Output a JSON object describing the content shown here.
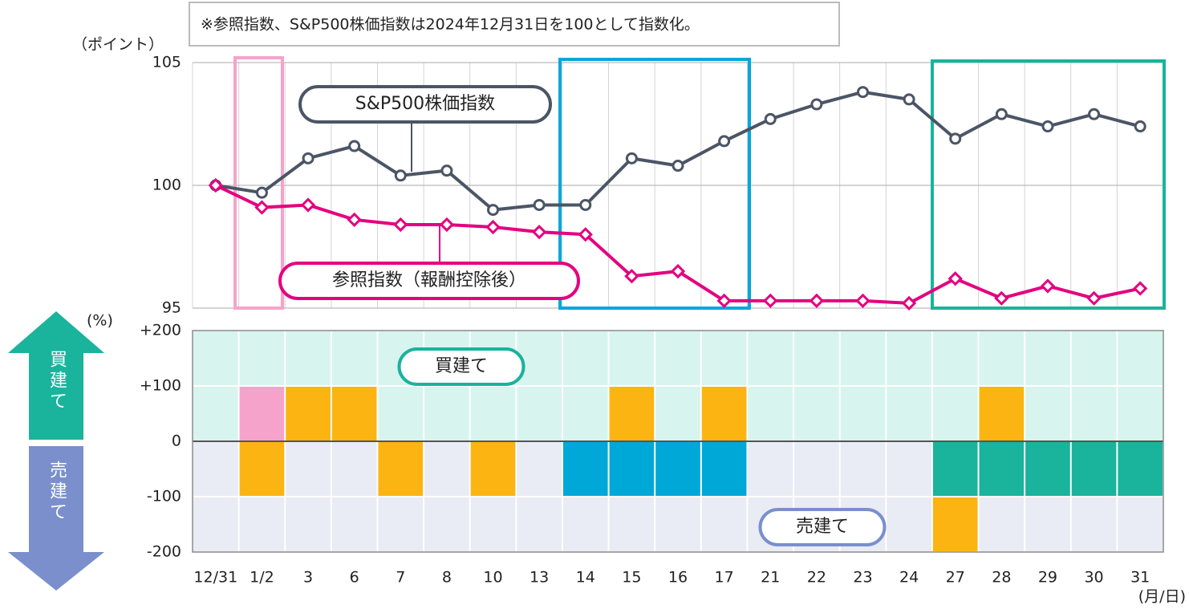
{
  "note": "※参照指数、S&P500株価指数は2024年12月31日を100として指数化。",
  "chart_data": [
    {
      "type": "line",
      "y_label": "（ポイント）",
      "ylim": [
        95,
        105
      ],
      "yticks": [
        95,
        100,
        105
      ],
      "annotations": [
        "S&P500株価指数",
        "参照指数（報酬控除後）"
      ],
      "series": [
        {
          "name": "S&P500株価指数",
          "color": "#4b5566",
          "marker": "circle",
          "values": [
            100,
            99.7,
            101.1,
            101.6,
            100.4,
            100.6,
            99.0,
            99.2,
            99.2,
            101.1,
            100.8,
            101.8,
            102.7,
            103.3,
            103.8,
            103.5,
            101.9,
            102.9,
            102.4,
            102.9,
            102.4
          ]
        },
        {
          "name": "参照指数（報酬控除後）",
          "color": "#e4007f",
          "marker": "diamond",
          "values": [
            100,
            99.1,
            99.2,
            98.6,
            98.4,
            98.4,
            98.3,
            98.1,
            98.0,
            96.3,
            96.5,
            95.3,
            95.3,
            95.3,
            95.3,
            95.2,
            96.2,
            95.4,
            95.9,
            95.4,
            95.8
          ]
        }
      ]
    },
    {
      "type": "bar",
      "y_label": "(%)",
      "x_label": "(月/日)",
      "categories": [
        "12/31",
        "1/2",
        "3",
        "6",
        "7",
        "8",
        "10",
        "13",
        "14",
        "15",
        "16",
        "17",
        "21",
        "22",
        "23",
        "24",
        "27",
        "28",
        "29",
        "30",
        "31"
      ],
      "ylim": [
        -200,
        200
      ],
      "yticks": [
        {
          "value": 200,
          "label": "+200"
        },
        {
          "value": 100,
          "label": "+100"
        },
        0,
        -100,
        -200
      ],
      "annotations": [
        "買建て",
        "売建て"
      ],
      "series": [
        {
          "values": [
            null,
            100,
            100,
            100,
            null,
            null,
            null,
            null,
            null,
            100,
            null,
            100,
            null,
            null,
            null,
            null,
            null,
            100,
            null,
            null,
            null
          ],
          "colors": [
            null,
            "#f5a3cb",
            "#fbb412",
            "#fbb412",
            null,
            null,
            null,
            null,
            null,
            "#fbb412",
            null,
            "#fbb412",
            null,
            null,
            null,
            null,
            null,
            "#fbb412",
            null,
            null,
            null
          ]
        },
        {
          "values": [
            null,
            -100,
            null,
            null,
            -100,
            null,
            -100,
            null,
            -100,
            -100,
            -100,
            -100,
            null,
            null,
            null,
            null,
            -100,
            -100,
            -100,
            -100,
            -100
          ],
          "colors": [
            null,
            "#fbb412",
            null,
            null,
            "#fbb412",
            null,
            "#fbb412",
            null,
            "#00a8d8",
            "#00a8d8",
            "#00a8d8",
            "#00a8d8",
            null,
            null,
            null,
            null,
            "#1ab39c",
            "#1ab39c",
            "#1ab39c",
            "#1ab39c",
            "#1ab39c"
          ]
        },
        {
          "values": [
            null,
            null,
            null,
            null,
            null,
            null,
            null,
            null,
            null,
            null,
            null,
            null,
            null,
            null,
            null,
            null,
            -100,
            null,
            null,
            null,
            null
          ],
          "colors": [
            null,
            null,
            null,
            null,
            null,
            null,
            null,
            null,
            null,
            null,
            null,
            null,
            null,
            null,
            null,
            null,
            "#fbb412",
            null,
            null,
            null,
            null
          ]
        }
      ]
    }
  ]
}
